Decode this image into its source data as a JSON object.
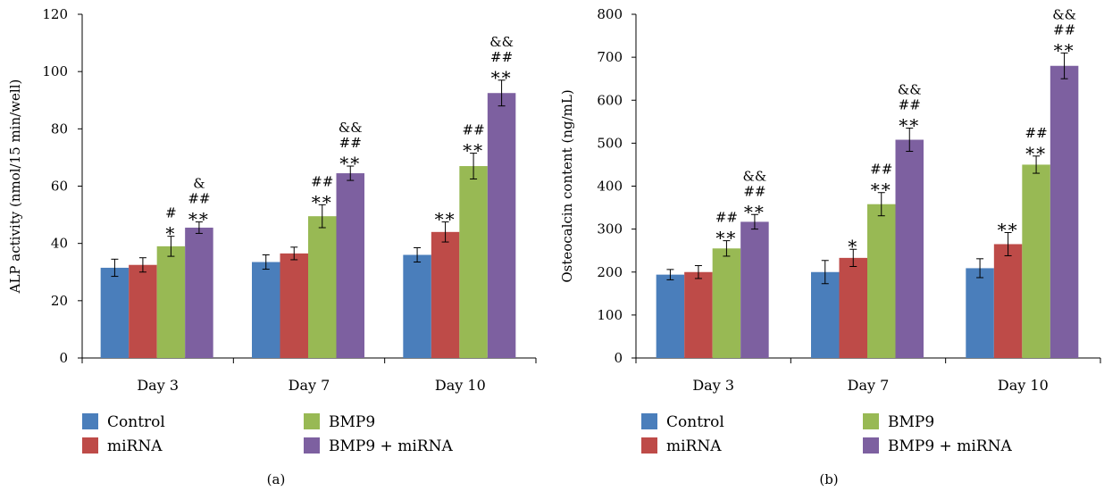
{
  "chart_data": [
    {
      "type": "bar",
      "panel_label": "(a)",
      "ylabel": "ALP activity (nmol/15 min/well)",
      "ylim": [
        0,
        120
      ],
      "yticks": [
        0,
        20,
        40,
        60,
        80,
        100,
        120
      ],
      "categories": [
        "Day 3",
        "Day 7",
        "Day 10"
      ],
      "series": [
        {
          "name": "Control",
          "color": "#4a7ebb",
          "values": [
            31.5,
            33.5,
            36
          ],
          "errors": [
            3,
            2.5,
            2.5
          ],
          "sig": [
            "",
            "",
            ""
          ]
        },
        {
          "name": "miRNA",
          "color": "#be4b48",
          "values": [
            32.5,
            36.5,
            44
          ],
          "errors": [
            2.5,
            2.2,
            3.5
          ],
          "sig": [
            "",
            "",
            "**"
          ]
        },
        {
          "name": "BMP9",
          "color": "#98b954",
          "values": [
            39,
            49.5,
            67
          ],
          "errors": [
            3.5,
            4,
            4.5
          ],
          "sig": [
            "*\n#",
            "**\n##",
            "**\n##"
          ]
        },
        {
          "name": "BMP9 + miRNA",
          "color": "#7d60a0",
          "values": [
            45.5,
            64.5,
            92.5
          ],
          "errors": [
            2,
            2.5,
            4.5
          ],
          "sig": [
            "**\n##\n&",
            "**\n##\n&&",
            "**\n##\n&&"
          ]
        }
      ],
      "legend": {
        "placement": "bottom"
      }
    },
    {
      "type": "bar",
      "panel_label": "(b)",
      "ylabel": "Osteocalcin content (ng/mL)",
      "ylim": [
        0,
        800
      ],
      "yticks": [
        0,
        100,
        200,
        300,
        400,
        500,
        600,
        700,
        800
      ],
      "categories": [
        "Day 3",
        "Day 7",
        "Day 10"
      ],
      "series": [
        {
          "name": "Control",
          "color": "#4a7ebb",
          "values": [
            194,
            200,
            209
          ],
          "errors": [
            12,
            27,
            22
          ],
          "sig": [
            "",
            "",
            ""
          ]
        },
        {
          "name": "miRNA",
          "color": "#be4b48",
          "values": [
            200,
            233,
            265
          ],
          "errors": [
            15,
            20,
            27
          ],
          "sig": [
            "",
            "*",
            "**"
          ]
        },
        {
          "name": "BMP9",
          "color": "#98b954",
          "values": [
            255,
            358,
            450
          ],
          "errors": [
            18,
            27,
            20
          ],
          "sig": [
            "**\n##",
            "**\n##",
            "**\n##"
          ]
        },
        {
          "name": "BMP9 + miRNA",
          "color": "#7d60a0",
          "values": [
            317,
            508,
            680
          ],
          "errors": [
            17,
            27,
            30
          ],
          "sig": [
            "**\n##\n&&",
            "**\n##\n&&",
            "**\n##\n&&"
          ]
        }
      ],
      "legend": {
        "placement": "bottom"
      }
    }
  ]
}
